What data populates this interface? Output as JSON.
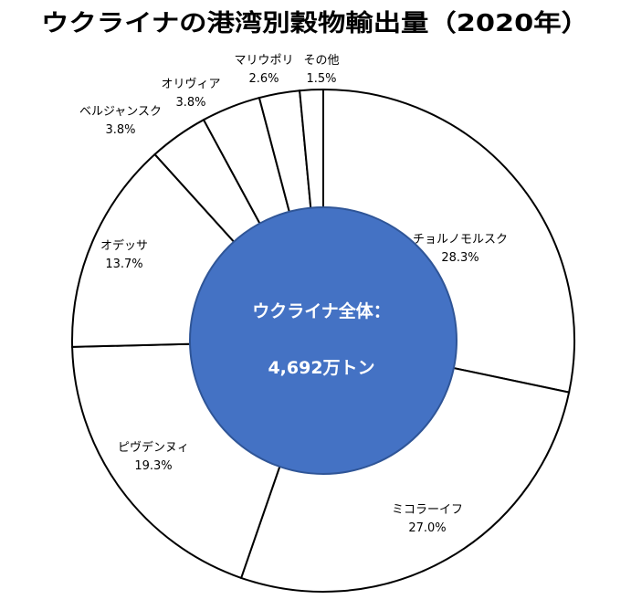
{
  "chart_data": {
    "type": "pie",
    "title": "ウクライナの港湾別穀物輸出量（2020年）",
    "center_label": {
      "line1": "ウクライナ全体：",
      "line2": "4,692万トン"
    },
    "slices": [
      {
        "name": "チョルノモルスク",
        "value": 28.3,
        "label": "28.3%"
      },
      {
        "name": "ミコラーイフ",
        "value": 27.0,
        "label": "27.0%"
      },
      {
        "name": "ピヴデンヌィ",
        "value": 19.3,
        "label": "19.3%"
      },
      {
        "name": "オデッサ",
        "value": 13.7,
        "label": "13.7%"
      },
      {
        "name": "ベルジャンスク",
        "value": 3.8,
        "label": "3.8%"
      },
      {
        "name": "オリヴィア",
        "value": 3.8,
        "label": "3.8%"
      },
      {
        "name": "マリウポリ",
        "value": 2.6,
        "label": "2.6%"
      },
      {
        "name": "その他",
        "value": 1.5,
        "label": "1.5%"
      }
    ],
    "colors": {
      "slice_fill": "#ffffff",
      "slice_stroke": "#000000",
      "center_fill": "#4472c4",
      "center_stroke": "#2f5597",
      "center_text": "#ffffff"
    }
  }
}
